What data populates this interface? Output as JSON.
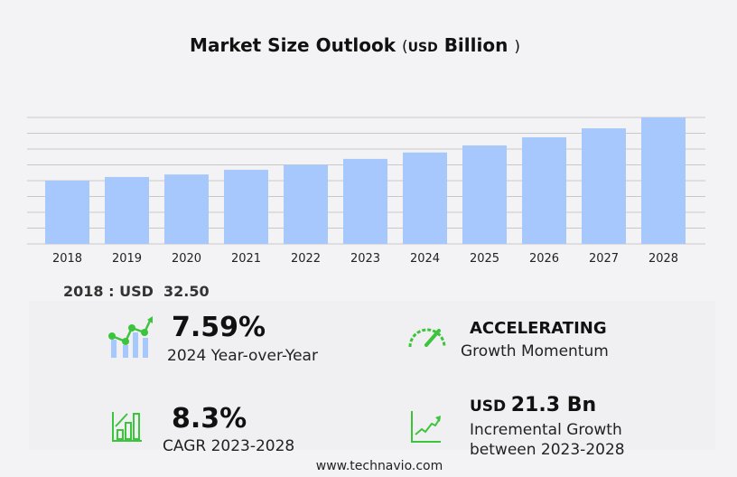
{
  "title": {
    "main": "Market Size Outlook",
    "open": "(",
    "unit": "USD",
    "rest": "Billion",
    "close": ")"
  },
  "base_label": "2018 : USD  32.50",
  "kpis": {
    "yoy": {
      "value": "7.59%",
      "label": "2024 Year-over-Year",
      "icon": "bar-line-growth-icon"
    },
    "momentum": {
      "value": "ACCELERATING",
      "label": "Growth Momentum",
      "icon": "speedometer-icon"
    },
    "cagr": {
      "value": "8.3%",
      "label": "CAGR 2023-2028",
      "icon": "bar-chart-up-icon"
    },
    "incremental": {
      "unit": "USD",
      "value": "21.3 Bn",
      "label1": "Incremental Growth",
      "label2": "between 2023-2028",
      "icon": "trend-line-icon"
    }
  },
  "footer": "www.technavio.com",
  "colors": {
    "bar": "#a6c8fd",
    "accent": "#3cc43c",
    "grid": "#c8c8cc"
  },
  "chart_data": {
    "type": "bar",
    "title": "Market Size Outlook (USD Billion)",
    "categories": [
      "2018",
      "2019",
      "2020",
      "2021",
      "2022",
      "2023",
      "2024",
      "2025",
      "2026",
      "2027",
      "2028"
    ],
    "values": [
      32.5,
      34.4,
      35.7,
      38.1,
      40.6,
      43.7,
      47.0,
      50.6,
      54.8,
      59.4,
      65.0
    ],
    "ylim": [
      0,
      65
    ],
    "grid": true,
    "y_tick_labels_shown": false
  }
}
